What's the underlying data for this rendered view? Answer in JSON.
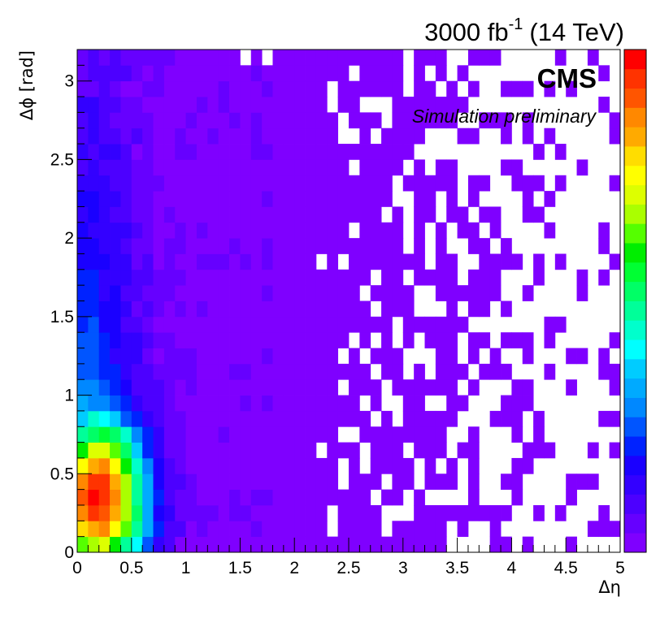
{
  "header": {
    "lumi_value": "3000 fb",
    "lumi_exponent": "-1",
    "energy_label": "(14 TeV)",
    "cms_label": "CMS",
    "sim_label": "Simulation preliminary"
  },
  "chart_data": {
    "type": "heatmap",
    "title": "",
    "xlabel": "Δη",
    "ylabel": "Δϕ [rad]",
    "xlim": [
      0,
      5
    ],
    "ylim": [
      0,
      3.2
    ],
    "x_ticks": [
      "0",
      "0.5",
      "1",
      "1.5",
      "2",
      "2.5",
      "3",
      "3.5",
      "4",
      "4.5",
      "5"
    ],
    "y_ticks": [
      "0",
      "0.5",
      "1",
      "1.5",
      "2",
      "2.5",
      "3"
    ],
    "bin_width": [
      0.1,
      0.1
    ],
    "palette": [
      "#7f00ff",
      "#6600ff",
      "#4c00ff",
      "#3300ff",
      "#1a00ff",
      "#0022ff",
      "#0055ff",
      "#0088ff",
      "#00aaff",
      "#00ccff",
      "#00ffff",
      "#00ffcc",
      "#00ff99",
      "#00ff66",
      "#00ff33",
      "#00ee00",
      "#55ff00",
      "#aaff00",
      "#ddff00",
      "#ffff00",
      "#ffdd00",
      "#ffaa00",
      "#ff8800",
      "#ff5500",
      "#ff3300",
      "#ff0000"
    ],
    "empty_color": "#ffffff",
    "z_description": "relative entries (color index 0 = lowest, 25 = highest)",
    "hotspot": {
      "x": 0.2,
      "y": 0.35
    }
  }
}
